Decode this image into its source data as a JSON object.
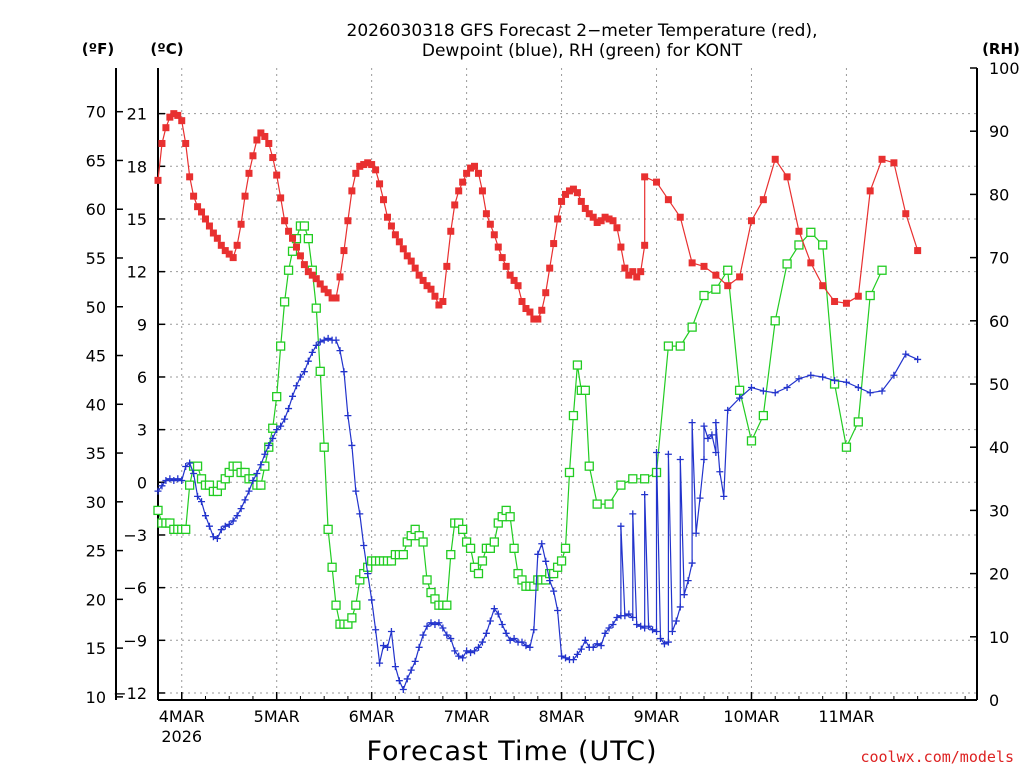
{
  "chart_data": {
    "type": "line",
    "title_line1": "2026030318 GFS Forecast 2−meter Temperature (red),",
    "title_line2": "Dewpoint (blue), RH (green) for KONT",
    "left_unit_f": "(ºF)",
    "left_unit_c": "(ºC)",
    "right_unit": "(RH)",
    "xlabel": "Forecast Time (UTC)",
    "credit": "coolwx.com/models",
    "x_range": [
      -6,
      201
    ],
    "celsius_range": [
      -12.4,
      23.6
    ],
    "rh_range": [
      0,
      100
    ],
    "f_ticks": [
      "10",
      "15",
      "20",
      "25",
      "30",
      "35",
      "40",
      "45",
      "50",
      "55",
      "60",
      "65",
      "70"
    ],
    "c_ticks": [
      "−12",
      "−9",
      "−6",
      "−3",
      "0",
      "3",
      "6",
      "9",
      "12",
      "15",
      "18",
      "21"
    ],
    "rh_ticks": [
      "0",
      "10",
      "20",
      "30",
      "40",
      "50",
      "60",
      "70",
      "80",
      "90",
      "100"
    ],
    "x_ticks": [
      {
        "label": "4MAR",
        "sub": "2026",
        "h": 0
      },
      {
        "label": "5MAR",
        "sub": "",
        "h": 24
      },
      {
        "label": "6MAR",
        "sub": "",
        "h": 48
      },
      {
        "label": "7MAR",
        "sub": "",
        "h": 72
      },
      {
        "label": "8MAR",
        "sub": "",
        "h": 96
      },
      {
        "label": "9MAR",
        "sub": "",
        "h": 120
      },
      {
        "label": "10MAR",
        "sub": "",
        "h": 144
      },
      {
        "label": "11MAR",
        "sub": "",
        "h": 168
      }
    ],
    "colors": {
      "temperature": "#e83030",
      "dewpoint": "#2233cc",
      "rh": "#22cc22"
    },
    "series": [
      {
        "name": "Temperature",
        "unit": "C",
        "step": 1,
        "start_hour": -6,
        "values": [
          17.2,
          19.3,
          20.2,
          20.8,
          21,
          20.9,
          20.6,
          19.3,
          17.4,
          16.3,
          15.7,
          15.4,
          15,
          14.6,
          14.2,
          13.9,
          13.5,
          13.2,
          13,
          12.8,
          13.5,
          14.7,
          16.3,
          17.6,
          18.6,
          19.5,
          19.9,
          19.7,
          19.3,
          18.5,
          17.5,
          16.2,
          14.9,
          14.3,
          13.9,
          13.4,
          12.9,
          12.4,
          12,
          11.8,
          11.6,
          11.3,
          11,
          10.8,
          10.5,
          10.5,
          11.7,
          13.2,
          14.9,
          16.6,
          17.6,
          18,
          18.1,
          18.2,
          18.1,
          17.8,
          17,
          16.1,
          15.1,
          14.6,
          14.1,
          13.7,
          13.3,
          12.9,
          12.6,
          12.2,
          11.8,
          11.5,
          11.2,
          11,
          10.6,
          10.1,
          10.3,
          12.3,
          14.3,
          15.8,
          16.6,
          17.1,
          17.6,
          17.9,
          18,
          17.6,
          16.6,
          15.3,
          14.7,
          14.1,
          13.4,
          12.8,
          12.3,
          11.8,
          11.5,
          11.2,
          10.3,
          9.9,
          9.7,
          9.3,
          9.3,
          9.8,
          10.8,
          12.2,
          13.6,
          15,
          16,
          16.4,
          16.6,
          16.7,
          16.5,
          16,
          15.6,
          15.3,
          15.1,
          14.8,
          14.9,
          15.1,
          15,
          14.9,
          14.5,
          13.4,
          12.2,
          11.8,
          12,
          11.7,
          12,
          13.5
        ]
      },
      {
        "name": "Temperature",
        "unit": "C",
        "step": 3,
        "start_hour": 117,
        "values": [
          17.4,
          17.1,
          16.1,
          15.1,
          12.5,
          12.3,
          11.8,
          11.2,
          11.7,
          14.9,
          16.1,
          18.4,
          17.4,
          14.3,
          12.5,
          11.2,
          10.3,
          10.2,
          10.6,
          16.6,
          18.4,
          18.2,
          15.3,
          13.2
        ]
      },
      {
        "name": "Dewpoint",
        "unit": "C",
        "step": 1,
        "start_hour": -6,
        "values": [
          -0.5,
          -0.2,
          0.1,
          0.2,
          0.1,
          0.2,
          0.1,
          0.9,
          1.1,
          0.5,
          -0.8,
          -1.1,
          -1.9,
          -2.5,
          -3.1,
          -3.2,
          -2.7,
          -2.5,
          -2.4,
          -2.2,
          -1.9,
          -1.5,
          -1,
          -0.5,
          0.1,
          0.5,
          1,
          1.6,
          2.1,
          2.5,
          3,
          3.2,
          3.6,
          4.2,
          4.9,
          5.5,
          6,
          6.3,
          6.9,
          7.4,
          7.8,
          8,
          8.1,
          8.2,
          8.1,
          8.1,
          7.5,
          6.3,
          3.8,
          2.1,
          -0.5,
          -1.8,
          -3.6,
          -5.2,
          -6.7,
          -8.4,
          -10.3,
          -9.3,
          -9.4,
          -8.5,
          -10.5,
          -11.3,
          -11.8,
          -11.2,
          -10.7,
          -10.2,
          -9.4,
          -8.7,
          -8.2,
          -8,
          -8.1,
          -8,
          -8.3,
          -8.7,
          -8.9,
          -9.6,
          -9.9,
          -10,
          -9.6,
          -9.7,
          -9.6,
          -9.4,
          -9.1,
          -8.6,
          -7.9,
          -7.2,
          -7.5,
          -8.1,
          -8.6,
          -9,
          -8.9,
          -9.1,
          -9.1,
          -9.3,
          -9.4,
          -8.4,
          -4.1,
          -3.5,
          -4.5,
          -5.6,
          -6.2,
          -7.3,
          -9.9,
          -10,
          -10.1,
          -10.1,
          -9.8,
          -9.5,
          -9,
          -9.4,
          -9.4,
          -9.2,
          -9.3,
          -8.6,
          -8.3,
          -8.1,
          -7.7,
          -7.6,
          -7.6,
          -7.5,
          -7.7,
          -8.1,
          -8.2,
          -8.3,
          -8.2,
          -8.4,
          -8.5,
          -8.9,
          -9.2,
          -9.1,
          -8.5,
          -7.9,
          -7.1,
          -6.4,
          -5.6,
          -4.6,
          -2.9,
          -0.9,
          1.3,
          2.5,
          2.7,
          1.7,
          0.6,
          -0.8
        ]
      },
      {
        "name": "Dewpoint",
        "unit": "C",
        "step": 3,
        "start_hour": 111,
        "values": [
          -2.5,
          -1.8,
          -0.7,
          1.7,
          1.6,
          1.3,
          3.4,
          3.2,
          3.4,
          4.1,
          4.8,
          5.4,
          5.2,
          5.1,
          5.4,
          5.9,
          6.1,
          6,
          5.8,
          5.7,
          5.4,
          5.1,
          5.2,
          6.1,
          7.3,
          7
        ]
      },
      {
        "name": "RH",
        "unit": "%",
        "step": 1,
        "start_hour": -6,
        "values": [
          30,
          28,
          28,
          28,
          27,
          27,
          27,
          27,
          34,
          37,
          37,
          35,
          34,
          34,
          33,
          33,
          34,
          35,
          36,
          37,
          37,
          36,
          36,
          35,
          35,
          34,
          34,
          37,
          40,
          43,
          48,
          56,
          63,
          68,
          71,
          73,
          75,
          75,
          73,
          68,
          62,
          52,
          40,
          27,
          21,
          15,
          12,
          12,
          12,
          13,
          15,
          19,
          20,
          21,
          22,
          22,
          22,
          22,
          22,
          22,
          23,
          23,
          23,
          25,
          26,
          27,
          26,
          25,
          19,
          17,
          16,
          15,
          15,
          15,
          23,
          28,
          28,
          27,
          25,
          24,
          21,
          20,
          22,
          24,
          24,
          25,
          28,
          29,
          30,
          29,
          24,
          20,
          19,
          18,
          18,
          18,
          19,
          19,
          19,
          20,
          20,
          21,
          22,
          24,
          36,
          45,
          53,
          49,
          49,
          37
        ]
      },
      {
        "name": "RH",
        "unit": "%",
        "step": 3,
        "start_hour": 105,
        "values": [
          31,
          31,
          34,
          35,
          35,
          36,
          56,
          56,
          59,
          64,
          65,
          68,
          49,
          41,
          45,
          60,
          69,
          72,
          74,
          72,
          50,
          40,
          44,
          64,
          68
        ]
      }
    ]
  }
}
